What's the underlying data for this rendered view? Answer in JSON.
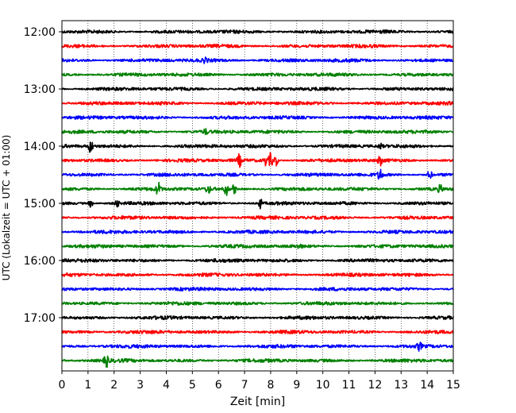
{
  "chart_data": {
    "type": "line",
    "title": "",
    "xlabel": "Zeit  [min]",
    "ylabel": "UTC (Lokalzeit = UTC + 01:00)",
    "xlim": [
      0,
      15
    ],
    "x_ticks": [
      "0",
      "1",
      "2",
      "3",
      "4",
      "5",
      "6",
      "7",
      "8",
      "9",
      "10",
      "11",
      "12",
      "13",
      "14",
      "15"
    ],
    "y_ticks": [
      "12:00",
      "13:00",
      "14:00",
      "15:00",
      "16:00",
      "17:00"
    ],
    "grid": "vertical dotted",
    "trace_interval_minutes": 15,
    "color_cycle": [
      "#000000",
      "#ff0000",
      "#0000ff",
      "#008000"
    ],
    "series": [
      {
        "start": "12:00",
        "events": []
      },
      {
        "start": "12:15",
        "events": []
      },
      {
        "start": "12:30",
        "events": [
          {
            "t": 5.5,
            "amp": 0.35
          }
        ]
      },
      {
        "start": "12:45",
        "events": []
      },
      {
        "start": "13:00",
        "events": []
      },
      {
        "start": "13:15",
        "events": []
      },
      {
        "start": "13:30",
        "events": []
      },
      {
        "start": "13:45",
        "events": [
          {
            "t": 5.5,
            "amp": 0.3
          }
        ]
      },
      {
        "start": "14:00",
        "events": [
          {
            "t": 1.1,
            "amp": 0.9
          },
          {
            "t": 12.2,
            "amp": 0.3
          }
        ]
      },
      {
        "start": "14:15",
        "events": [
          {
            "t": 6.8,
            "amp": 0.8
          },
          {
            "t": 7.8,
            "amp": 0.6
          },
          {
            "t": 8.0,
            "amp": 1.0
          },
          {
            "t": 8.2,
            "amp": 0.7
          },
          {
            "t": 12.2,
            "amp": 0.6
          }
        ]
      },
      {
        "start": "14:30",
        "events": [
          {
            "t": 12.2,
            "amp": 0.9
          },
          {
            "t": 14.1,
            "amp": 0.6
          }
        ]
      },
      {
        "start": "14:45",
        "events": [
          {
            "t": 3.7,
            "amp": 0.9
          },
          {
            "t": 5.6,
            "amp": 0.6
          },
          {
            "t": 6.3,
            "amp": 0.8
          },
          {
            "t": 6.6,
            "amp": 0.6
          },
          {
            "t": 14.5,
            "amp": 0.5
          }
        ]
      },
      {
        "start": "15:00",
        "events": [
          {
            "t": 1.1,
            "amp": 0.5
          },
          {
            "t": 2.1,
            "amp": 0.5
          },
          {
            "t": 7.6,
            "amp": 0.6
          }
        ]
      },
      {
        "start": "15:15",
        "events": []
      },
      {
        "start": "15:30",
        "events": []
      },
      {
        "start": "15:45",
        "events": [
          {
            "t": 9.1,
            "amp": 0.3
          }
        ]
      },
      {
        "start": "16:00",
        "events": []
      },
      {
        "start": "16:15",
        "events": []
      },
      {
        "start": "16:30",
        "events": []
      },
      {
        "start": "16:45",
        "events": []
      },
      {
        "start": "17:00",
        "events": []
      },
      {
        "start": "17:15",
        "events": []
      },
      {
        "start": "17:30",
        "events": [
          {
            "t": 13.7,
            "amp": 0.5
          }
        ]
      },
      {
        "start": "17:45",
        "events": [
          {
            "t": 1.7,
            "amp": 0.9
          }
        ]
      }
    ]
  }
}
